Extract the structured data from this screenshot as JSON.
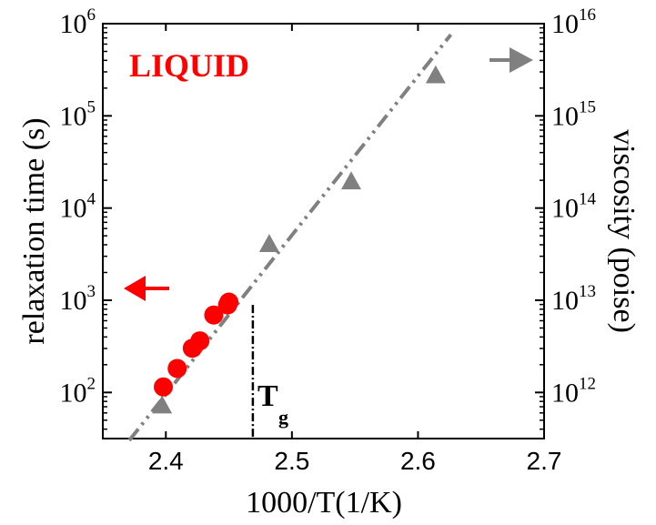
{
  "chart_data": {
    "type": "scatter",
    "xlabel": "1000/T(1/K)",
    "ylabel_left": "relaxation time (s)",
    "ylabel_right": "viscosity (poise)",
    "xlim": [
      2.35,
      2.7
    ],
    "x_ticks": [
      "2.4",
      "2.5",
      "2.6",
      "2.7"
    ],
    "ylim_left_log10": [
      1.5,
      6
    ],
    "ylim_right_log10": [
      11.5,
      16
    ],
    "y_left_ticks": [
      {
        "base": "10",
        "exp": "2",
        "v": 2
      },
      {
        "base": "10",
        "exp": "3",
        "v": 3
      },
      {
        "base": "10",
        "exp": "4",
        "v": 4
      },
      {
        "base": "10",
        "exp": "5",
        "v": 5
      },
      {
        "base": "10",
        "exp": "6",
        "v": 6
      }
    ],
    "y_right_ticks": [
      {
        "base": "10",
        "exp": "12",
        "v": 12
      },
      {
        "base": "10",
        "exp": "13",
        "v": 13
      },
      {
        "base": "10",
        "exp": "14",
        "v": 14
      },
      {
        "base": "10",
        "exp": "15",
        "v": 15
      },
      {
        "base": "10",
        "exp": "16",
        "v": 16
      }
    ],
    "annotation_liquid": "LIQUID",
    "tg_label": "T",
    "tg_sub": "g",
    "tg_x": 2.469,
    "tg_y_top": 2.95,
    "relaxation_series": {
      "color": "#ff0000",
      "marker": "circle",
      "axis": "left",
      "points": [
        [
          2.398,
          2.06
        ],
        [
          2.409,
          2.26
        ],
        [
          2.421,
          2.48
        ],
        [
          2.427,
          2.56
        ],
        [
          2.438,
          2.84
        ],
        [
          2.449,
          2.95
        ],
        [
          2.45,
          2.98
        ]
      ]
    },
    "viscosity_series": {
      "color": "#808080",
      "marker": "triangle",
      "axis": "right",
      "points": [
        [
          2.397,
          11.86
        ],
        [
          2.482,
          13.61
        ],
        [
          2.547,
          14.29
        ],
        [
          2.614,
          15.44
        ]
      ]
    },
    "fit_line": {
      "color": "#808080",
      "style": "dash-dot",
      "from": [
        2.371,
        1.48
      ],
      "to": [
        2.626,
        5.88
      ]
    },
    "left_arrow_color": "#ff0000",
    "right_arrow_color": "#808080",
    "grid": false
  }
}
